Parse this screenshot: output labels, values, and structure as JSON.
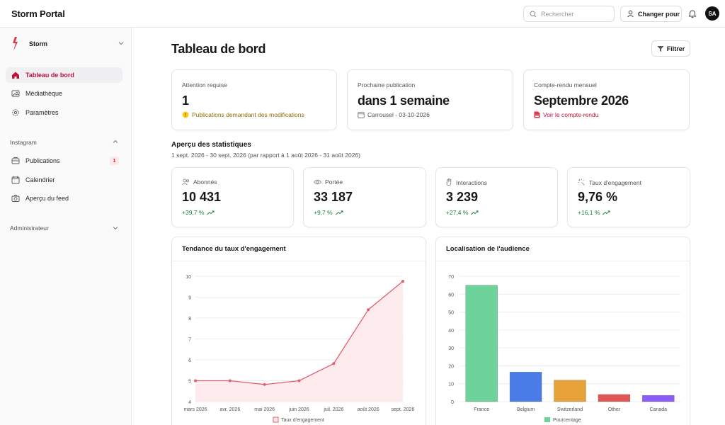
{
  "app": {
    "title": "Storm Portal"
  },
  "header": {
    "search_placeholder": "Rechercher",
    "switch_label": "Changer pour",
    "avatar_initials": "SA"
  },
  "sidebar": {
    "workspace": "Storm",
    "items": [
      {
        "label": "Tableau de bord",
        "icon": "home-icon",
        "active": true
      },
      {
        "label": "Médiathèque",
        "icon": "image-icon"
      },
      {
        "label": "Paramètres",
        "icon": "gear-icon"
      }
    ],
    "instagram_label": "Instagram",
    "instagram_items": [
      {
        "label": "Publications",
        "icon": "inbox-icon",
        "badge": "1"
      },
      {
        "label": "Calendrier",
        "icon": "calendar-icon"
      },
      {
        "label": "Aperçu du feed",
        "icon": "camera-icon"
      }
    ],
    "admin_label": "Administrateur"
  },
  "main": {
    "title": "Tableau de bord",
    "filter_label": "Filtrer",
    "cards": [
      {
        "label": "Attention requise",
        "value": "1",
        "sub": "Publications demandant des modifications"
      },
      {
        "label": "Prochaine publication",
        "value": "dans 1 semaine",
        "sub": "Carrousel - 03-10-2026"
      },
      {
        "label": "Compte-rendu mensuel",
        "value": "Septembre 2026",
        "sub": "Voir le compte-rendu"
      }
    ],
    "stats": {
      "title": "Aperçu des statistiques",
      "range": "1 sept. 2026 - 30 sept. 2026 (par rapport à 1 août 2026 - 31 août 2026)",
      "items": [
        {
          "label": "Abonnés",
          "value": "10 431",
          "delta": "+39,7 %"
        },
        {
          "label": "Portée",
          "value": "33 187",
          "delta": "+9,7 %"
        },
        {
          "label": "Interactions",
          "value": "3 239",
          "delta": "+27,4 %"
        },
        {
          "label": "Taux d'engagement",
          "value": "9,76 %",
          "delta": "+16,1 %"
        }
      ]
    },
    "engagement_chart_title": "Tendance du taux d'engagement",
    "audience_chart_title": "Localisation de l'audience"
  },
  "colors": {
    "accent": "#be123c",
    "line": "#e06070",
    "france": "#6dd39a",
    "belgium": "#4a7ce8",
    "switzerland": "#e8a23a",
    "other": "#e05656",
    "canada": "#8b5cf6",
    "positive": "#15803d"
  },
  "chart_data": [
    {
      "type": "line",
      "title": "Tendance du taux d'engagement",
      "x": [
        "mars 2026",
        "avr. 2026",
        "mai 2026",
        "juin 2026",
        "juil. 2026",
        "août 2026",
        "sept. 2026"
      ],
      "series": [
        {
          "name": "Taux d'engagement",
          "values": [
            5.0,
            5.0,
            4.82,
            5.0,
            5.82,
            8.4,
            9.76
          ]
        }
      ],
      "ylim": [
        4,
        10
      ],
      "yticks": [
        4,
        5,
        6,
        7,
        8,
        9,
        10
      ],
      "legend": "bottom",
      "grid": true
    },
    {
      "type": "bar",
      "title": "Localisation de l'audience",
      "categories": [
        "France",
        "Belgium",
        "Switzerland",
        "Other",
        "Canada"
      ],
      "series": [
        {
          "name": "Pourcentage",
          "values": [
            65,
            16.5,
            12,
            4,
            3.5
          ]
        }
      ],
      "ylim": [
        0,
        70
      ],
      "yticks": [
        0,
        10,
        20,
        30,
        40,
        50,
        60,
        70
      ],
      "legend": "bottom",
      "grid": true
    }
  ]
}
